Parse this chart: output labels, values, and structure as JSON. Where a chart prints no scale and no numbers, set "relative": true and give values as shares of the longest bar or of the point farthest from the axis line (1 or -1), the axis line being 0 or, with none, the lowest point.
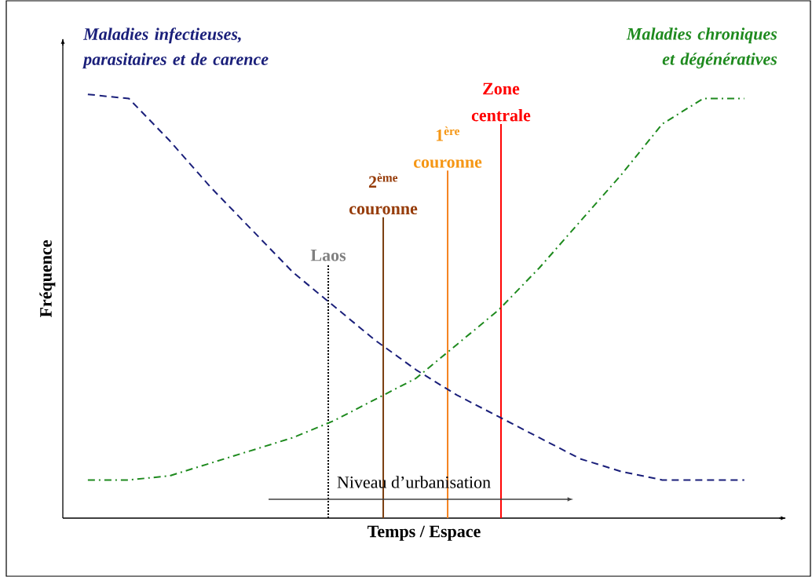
{
  "chart_data": {
    "type": "line",
    "relative": true,
    "xlabel": "Temps / Espace",
    "ylabel": "Fréquence",
    "categories": [
      null,
      null,
      null,
      null,
      null,
      null,
      null,
      null,
      null,
      null,
      null,
      null,
      null,
      null,
      null,
      null,
      null
    ],
    "series": [
      {
        "name": "Maladies infectieuses, parasitaires et de carence",
        "color": "#1a1f7a",
        "line_style": "dashed",
        "values": [
          1.0,
          0.99,
          0.89,
          0.78,
          0.68,
          0.58,
          0.5,
          0.42,
          0.35,
          0.29,
          0.24,
          0.19,
          0.14,
          0.11,
          0.09,
          0.09,
          0.09
        ]
      },
      {
        "name": "Maladies chroniques et dégénératives",
        "color": "#1e8a1e",
        "line_style": "dashdot",
        "values": [
          0.09,
          0.09,
          0.1,
          0.13,
          0.16,
          0.19,
          0.23,
          0.28,
          0.33,
          0.41,
          0.49,
          0.59,
          0.7,
          0.81,
          0.93,
          0.99,
          0.99
        ]
      }
    ],
    "annotations": [
      "Laos",
      "2$^{ème}$ couronne",
      "1$^{ère}$ couronne",
      "Zone centrale",
      "Niveau d’urbanisation"
    ],
    "marker": "none"
  }
}
